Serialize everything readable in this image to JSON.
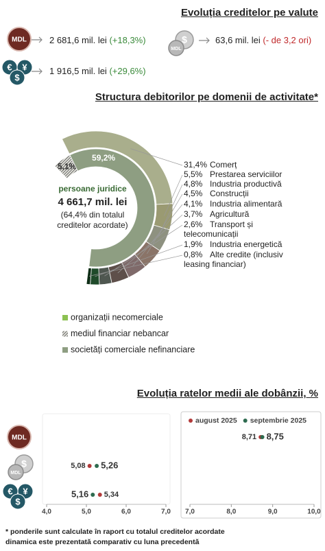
{
  "currency_section": {
    "title": "Evoluția creditelor pe valute",
    "items": [
      {
        "amount": "2 681,6 mil. lei",
        "change": "(+18,3%)"
      },
      {
        "amount": "63,6 mil. lei",
        "change": "(- de 3,2 ori)"
      },
      {
        "amount": "1 916,5 mil. lei",
        "change": "(+29,6%)"
      }
    ]
  },
  "icons": {
    "mdl": "MDL",
    "coin_mdl": "MDL",
    "coin_dollar": "$",
    "euro": "€",
    "yen": "¥",
    "dollar": "$"
  },
  "chart_data": [
    {
      "type": "donut",
      "title": "Structura debitorilor pe domenii de activitate*",
      "center_label": {
        "group": "persoane juridice",
        "amount": "4 661,7 mil. lei",
        "share": "(64,4% din totalul creditelor acordate)"
      },
      "inner": {
        "categories": [
          "organizații necomerciale",
          "mediul financiar nebancar",
          "societăți comerciale nefinanciare"
        ],
        "values": [
          0.1,
          5.1,
          59.2
        ],
        "value_labels": [
          null,
          "5,1%",
          "59,2%"
        ],
        "colors": [
          "#8cc152",
          "#9aa08f",
          "#8e9e82"
        ],
        "hatched": [
          false,
          true,
          false
        ]
      },
      "outer": {
        "categories": [
          "Comerț",
          "Prestarea serviciilor",
          "Industria productivă",
          "Construcții",
          "Industria alimentară",
          "Agricultură",
          "Transport și telecomunicații",
          "Industria energetică",
          "Alte credite (inclusiv leasing financiar)"
        ],
        "values": [
          31.4,
          5.5,
          4.8,
          4.5,
          4.1,
          3.7,
          2.6,
          1.9,
          0.8
        ],
        "value_labels": [
          "31,4%",
          "5,5%",
          "4,8%",
          "4,5%",
          "4,1%",
          "3,7%",
          "2,6%",
          "1,9%",
          "0,8%"
        ],
        "colors": [
          "#a9ae8c",
          "#9a9a72",
          "#8e9180",
          "#8a7468",
          "#7f6a6a",
          "#5e4f4a",
          "#4f5750",
          "#1f4a2a",
          "#0f2e17"
        ]
      }
    },
    {
      "type": "dot",
      "title": "Evoluția ratelor medii ale dobânzii, %",
      "xlim": [
        4,
        7
      ],
      "xticks": [
        {
          "value": 4,
          "label": "4,0"
        },
        {
          "value": 5,
          "label": "5,0"
        },
        {
          "value": 6,
          "label": "6,0"
        },
        {
          "value": 7,
          "label": "7,0"
        }
      ],
      "categories": [
        null,
        null,
        null
      ],
      "series": [
        {
          "color": "#b23a3a",
          "values": [
            null,
            5.08,
            5.34
          ],
          "value_labels": [
            null,
            "5,08",
            "5,34"
          ]
        },
        {
          "color": "#2e6b4f",
          "values": [
            null,
            5.26,
            5.16
          ],
          "value_labels": [
            null,
            "5,26",
            "5,16"
          ]
        }
      ]
    },
    {
      "type": "dot",
      "xlim": [
        7,
        10
      ],
      "xticks": [
        {
          "value": 7,
          "label": "7,0"
        },
        {
          "value": 8,
          "label": "8,0"
        },
        {
          "value": 9,
          "label": "9,0"
        },
        {
          "value": 10,
          "label": "10,0"
        }
      ],
      "categories": [
        null,
        null,
        null
      ],
      "legend": "top",
      "series": [
        {
          "name": "august 2025",
          "color": "#b23a3a",
          "values": [
            8.71,
            null,
            null
          ],
          "value_labels": [
            "8,71",
            null,
            null
          ]
        },
        {
          "name": "septembrie 2025",
          "color": "#2e6b4f",
          "values": [
            8.75,
            null,
            null
          ],
          "value_labels": [
            "8,75",
            null,
            null
          ]
        }
      ]
    }
  ],
  "footnotes": [
    "* ponderile sunt calculate în raport cu totalul creditelor acordate",
    "dinamica este prezentată comparativ cu luna precedentă"
  ]
}
